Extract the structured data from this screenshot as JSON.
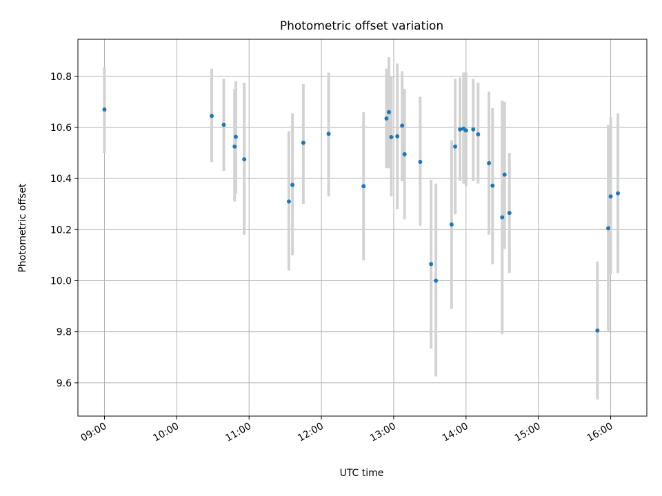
{
  "chart_data": {
    "type": "scatter",
    "title": "Photometric offset variation",
    "xlabel": "UTC time",
    "ylabel": "Photometric offset",
    "x_axis_kind": "time",
    "xlim": [
      "08:38",
      "16:30"
    ],
    "ylim": [
      9.47,
      10.945
    ],
    "grid": true,
    "x_ticks": [
      "09:00",
      "10:00",
      "11:00",
      "12:00",
      "13:00",
      "14:00",
      "15:00",
      "16:00"
    ],
    "y_ticks": [
      9.6,
      9.8,
      10.0,
      10.2,
      10.4,
      10.6,
      10.8
    ],
    "y_tick_labels": [
      "9.6",
      "9.8",
      "10.0",
      "10.2",
      "10.4",
      "10.6",
      "10.8"
    ],
    "series": [
      {
        "marker_color": "#1f77b4",
        "errorbar_color": "#d3d3d3",
        "points": [
          {
            "x": "09:00",
            "y": 10.67,
            "ylo": 10.5,
            "yhi": 10.835
          },
          {
            "x": "10:29",
            "y": 10.645,
            "ylo": 10.465,
            "yhi": 10.83
          },
          {
            "x": "10:39",
            "y": 10.61,
            "ylo": 10.43,
            "yhi": 10.79
          },
          {
            "x": "10:49",
            "y": 10.563,
            "ylo": 10.34,
            "yhi": 10.78
          },
          {
            "x": "10:48",
            "y": 10.525,
            "ylo": 10.31,
            "yhi": 10.75
          },
          {
            "x": "10:56",
            "y": 10.475,
            "ylo": 10.18,
            "yhi": 10.775
          },
          {
            "x": "11:33",
            "y": 10.31,
            "ylo": 10.04,
            "yhi": 10.585
          },
          {
            "x": "11:36",
            "y": 10.375,
            "ylo": 10.1,
            "yhi": 10.655
          },
          {
            "x": "11:45",
            "y": 10.54,
            "ylo": 10.3,
            "yhi": 10.77
          },
          {
            "x": "12:06",
            "y": 10.575,
            "ylo": 10.33,
            "yhi": 10.815
          },
          {
            "x": "12:35",
            "y": 10.37,
            "ylo": 10.08,
            "yhi": 10.66
          },
          {
            "x": "12:54",
            "y": 10.635,
            "ylo": 10.44,
            "yhi": 10.83
          },
          {
            "x": "12:56",
            "y": 10.66,
            "ylo": 10.44,
            "yhi": 10.875
          },
          {
            "x": "12:58",
            "y": 10.562,
            "ylo": 10.33,
            "yhi": 10.8
          },
          {
            "x": "13:03",
            "y": 10.565,
            "ylo": 10.28,
            "yhi": 10.85
          },
          {
            "x": "13:07",
            "y": 10.607,
            "ylo": 10.39,
            "yhi": 10.82
          },
          {
            "x": "13:09",
            "y": 10.495,
            "ylo": 10.24,
            "yhi": 10.75
          },
          {
            "x": "13:22",
            "y": 10.465,
            "ylo": 10.215,
            "yhi": 10.72
          },
          {
            "x": "13:31",
            "y": 10.065,
            "ylo": 9.735,
            "yhi": 10.395
          },
          {
            "x": "13:35",
            "y": 10.0,
            "ylo": 9.625,
            "yhi": 10.38
          },
          {
            "x": "13:48",
            "y": 10.22,
            "ylo": 9.89,
            "yhi": 10.55
          },
          {
            "x": "13:51",
            "y": 10.525,
            "ylo": 10.26,
            "yhi": 10.79
          },
          {
            "x": "13:55",
            "y": 10.592,
            "ylo": 10.39,
            "yhi": 10.795
          },
          {
            "x": "13:58",
            "y": 10.595,
            "ylo": 10.38,
            "yhi": 10.815
          },
          {
            "x": "14:00",
            "y": 10.588,
            "ylo": 10.37,
            "yhi": 10.815
          },
          {
            "x": "14:06",
            "y": 10.592,
            "ylo": 10.39,
            "yhi": 10.79
          },
          {
            "x": "14:10",
            "y": 10.573,
            "ylo": 10.38,
            "yhi": 10.775
          },
          {
            "x": "14:19",
            "y": 10.46,
            "ylo": 10.18,
            "yhi": 10.74
          },
          {
            "x": "14:22",
            "y": 10.372,
            "ylo": 10.065,
            "yhi": 10.675
          },
          {
            "x": "14:30",
            "y": 10.248,
            "ylo": 9.79,
            "yhi": 10.705
          },
          {
            "x": "14:32",
            "y": 10.415,
            "ylo": 10.125,
            "yhi": 10.7
          },
          {
            "x": "14:36",
            "y": 10.265,
            "ylo": 10.03,
            "yhi": 10.5
          },
          {
            "x": "15:49",
            "y": 9.805,
            "ylo": 9.535,
            "yhi": 10.075
          },
          {
            "x": "15:58",
            "y": 10.205,
            "ylo": 9.8,
            "yhi": 10.61
          },
          {
            "x": "16:00",
            "y": 10.33,
            "ylo": 10.025,
            "yhi": 10.64
          },
          {
            "x": "16:06",
            "y": 10.342,
            "ylo": 10.03,
            "yhi": 10.655
          }
        ]
      }
    ]
  }
}
